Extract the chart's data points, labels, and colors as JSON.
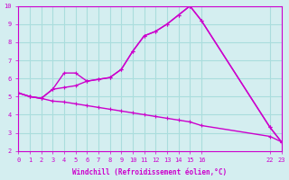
{
  "xlabel": "Windchill (Refroidissement éolien,°C)",
  "ylabel": "",
  "bg_color": "#d4eef0",
  "line_color": "#cc00cc",
  "grid_color": "#aadddd",
  "axis_color": "#cc00cc",
  "xlim": [
    0,
    23
  ],
  "ylim": [
    2,
    10
  ],
  "xticks": [
    0,
    1,
    2,
    3,
    4,
    5,
    6,
    7,
    8,
    9,
    10,
    11,
    12,
    13,
    14,
    15,
    16,
    22,
    23
  ],
  "yticks": [
    2,
    3,
    4,
    5,
    6,
    7,
    8,
    9,
    10
  ],
  "line1_x": [
    0,
    1,
    2,
    3,
    4,
    5,
    6,
    7,
    8,
    9,
    10,
    11,
    12,
    13,
    14,
    15,
    16,
    22,
    23
  ],
  "line1_y": [
    5.2,
    5.0,
    4.9,
    5.4,
    5.5,
    5.6,
    5.85,
    5.95,
    6.05,
    6.5,
    7.5,
    8.35,
    8.6,
    9.0,
    9.5,
    10.0,
    9.2,
    3.3,
    2.5
  ],
  "line2_x": [
    0,
    1,
    2,
    3,
    4,
    5,
    6,
    7,
    8,
    9,
    10,
    11,
    12,
    13,
    14,
    15,
    16,
    22,
    23
  ],
  "line2_y": [
    5.2,
    5.0,
    4.9,
    5.4,
    6.3,
    6.3,
    5.85,
    5.95,
    6.05,
    6.5,
    7.5,
    8.35,
    8.6,
    9.0,
    9.5,
    10.0,
    9.2,
    3.3,
    2.5
  ],
  "line3_x": [
    0,
    1,
    2,
    3,
    4,
    5,
    6,
    7,
    8,
    9,
    10,
    11,
    12,
    13,
    14,
    15,
    16,
    22,
    23
  ],
  "line3_y": [
    5.2,
    5.0,
    4.9,
    4.75,
    4.7,
    4.6,
    4.5,
    4.4,
    4.3,
    4.2,
    4.1,
    4.0,
    3.9,
    3.8,
    3.7,
    3.6,
    3.4,
    2.8,
    2.5
  ]
}
